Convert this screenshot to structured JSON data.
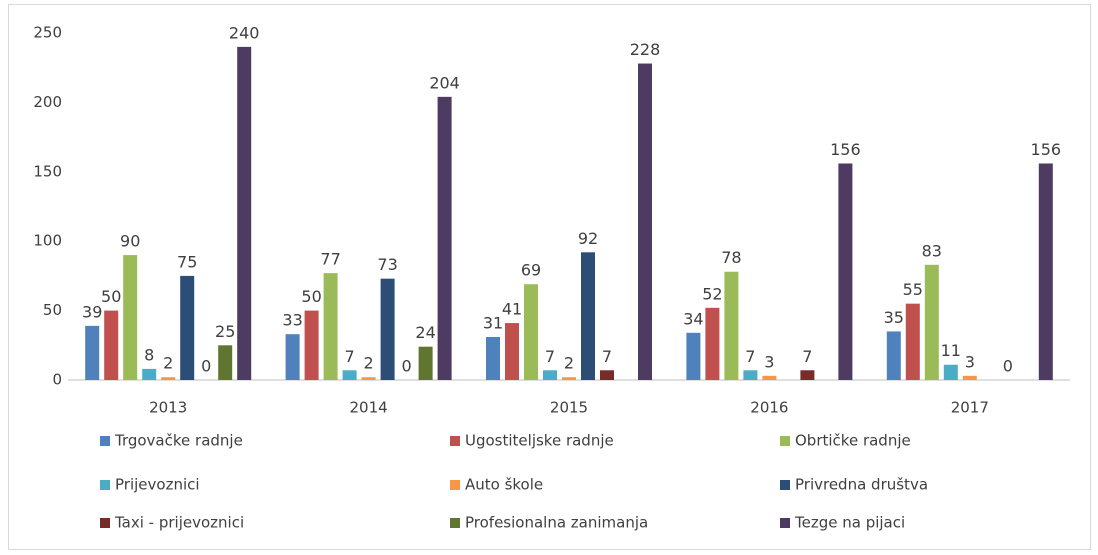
{
  "chart_data": {
    "type": "bar",
    "categories": [
      "2013",
      "2014",
      "2015",
      "2016",
      "2017"
    ],
    "series": [
      {
        "name": "Trgovačke radnje",
        "color": "#4f81bd",
        "values": [
          39,
          33,
          31,
          34,
          35
        ]
      },
      {
        "name": "Ugostiteljske radnje",
        "color": "#c0504d",
        "values": [
          50,
          50,
          41,
          52,
          55
        ]
      },
      {
        "name": "Obrtičke  radnje",
        "color": "#9bbb59",
        "values": [
          90,
          77,
          69,
          78,
          83
        ]
      },
      {
        "name": "Prijevoznici",
        "color": "#4bacc6",
        "values": [
          8,
          7,
          7,
          7,
          11
        ]
      },
      {
        "name": "Auto škole",
        "color": "#f79646",
        "values": [
          2,
          2,
          2,
          3,
          3
        ]
      },
      {
        "name": "Privredna društva",
        "color": "#2c4d75",
        "values": [
          75,
          73,
          92,
          null,
          null
        ]
      },
      {
        "name": "Taxi - prijevoznici",
        "color": "#772c2a",
        "values": [
          0,
          0,
          7,
          7,
          0
        ]
      },
      {
        "name": "Profesionalna zanimanja",
        "color": "#5f7530",
        "values": [
          25,
          24,
          null,
          null,
          null
        ]
      },
      {
        "name": "Tezge na pijaci",
        "color": "#4d3b62",
        "values": [
          240,
          204,
          228,
          156,
          156
        ]
      }
    ],
    "ylim": [
      0,
      250
    ],
    "yticks": [
      0,
      50,
      100,
      150,
      200,
      250
    ],
    "grid": false,
    "legend": "bottom"
  }
}
